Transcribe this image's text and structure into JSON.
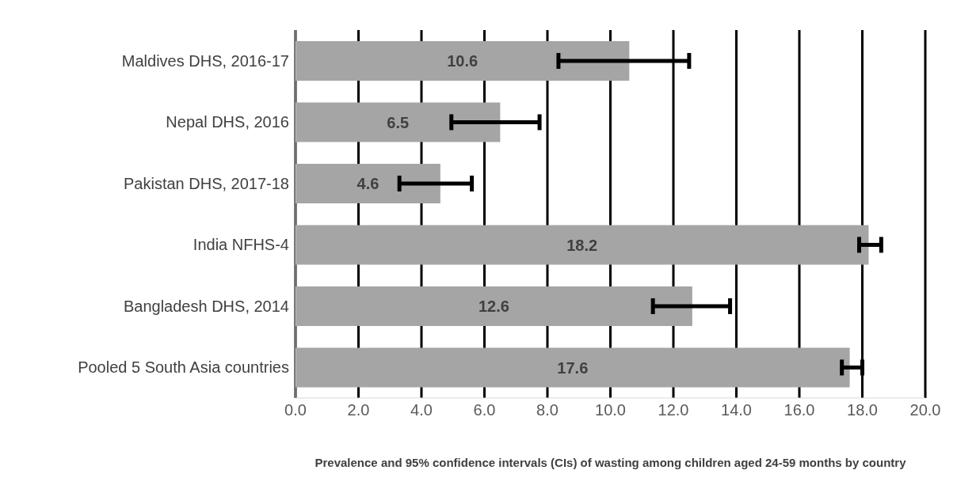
{
  "chart_data": {
    "type": "bar",
    "orientation": "horizontal",
    "xlabel": "Prevalence and 95% confidence intervals (CIs) of wasting among children aged 24-59 months by country",
    "categories": [
      "Maldives DHS, 2016-17",
      "Nepal DHS, 2016",
      "Pakistan DHS, 2017-18",
      "India NFHS-4",
      "Bangladesh DHS, 2014",
      "Pooled 5 South Asia countries"
    ],
    "values": [
      10.6,
      6.5,
      4.6,
      18.2,
      12.6,
      17.6
    ],
    "errors": [
      [
        8.35,
        12.5
      ],
      [
        4.95,
        7.75
      ],
      [
        3.3,
        5.6
      ],
      [
        17.9,
        18.6
      ],
      [
        11.35,
        13.8
      ],
      [
        17.35,
        18.0
      ]
    ],
    "color": "#a5a5a5",
    "data_labels": true,
    "grid": "x",
    "xlim": [
      0,
      20
    ],
    "xticks": [
      {
        "value": 0,
        "label": "0.0"
      },
      {
        "value": 2,
        "label": "2.0"
      },
      {
        "value": 4,
        "label": "4.0"
      },
      {
        "value": 6,
        "label": "6.0"
      },
      {
        "value": 8,
        "label": "8.0"
      },
      {
        "value": 10,
        "label": "10.0"
      },
      {
        "value": 12,
        "label": "12.0"
      },
      {
        "value": 14,
        "label": "14.0"
      },
      {
        "value": 16,
        "label": "16.0"
      },
      {
        "value": 18,
        "label": "18.0"
      },
      {
        "value": 20,
        "label": "20.0"
      }
    ]
  }
}
